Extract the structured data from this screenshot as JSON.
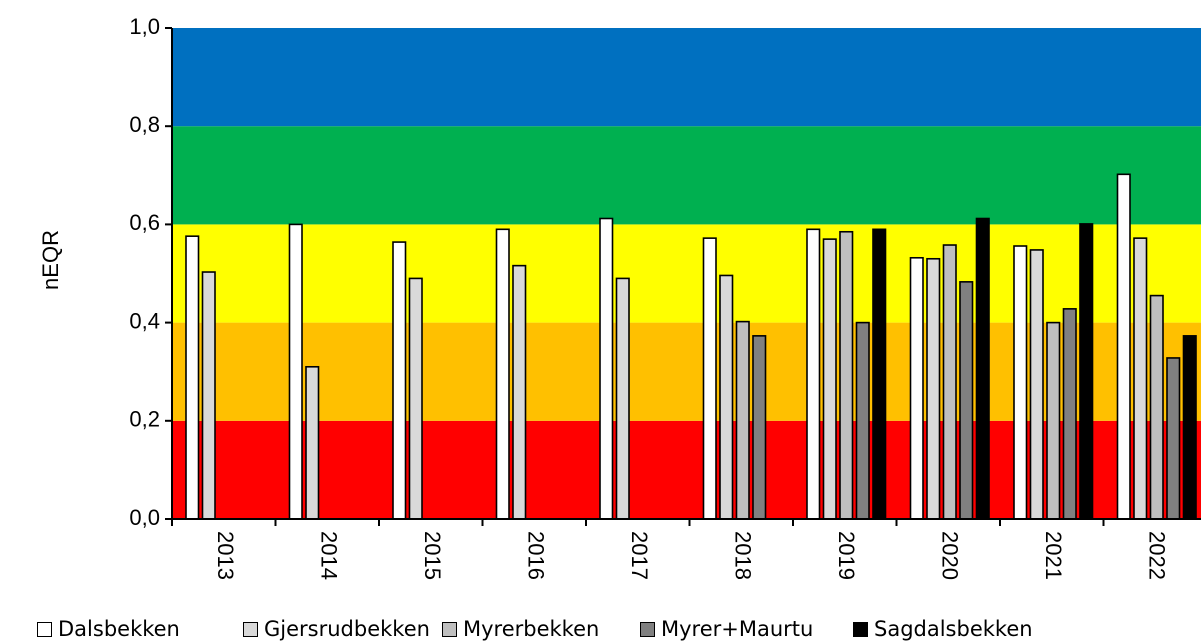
{
  "chart_data": {
    "type": "bar",
    "ylabel": "nEQR",
    "xlabel": "",
    "ylim": [
      0,
      1
    ],
    "yticks": [
      "0,0",
      "0,2",
      "0,4",
      "0,6",
      "0,8",
      "1,0"
    ],
    "categories": [
      "2013",
      "2014",
      "2015",
      "2016",
      "2017",
      "2018",
      "2019",
      "2020",
      "2021",
      "2022"
    ],
    "background_bands": [
      {
        "from": 0.0,
        "to": 0.2,
        "color": "#ff0000"
      },
      {
        "from": 0.2,
        "to": 0.4,
        "color": "#ffc000"
      },
      {
        "from": 0.4,
        "to": 0.6,
        "color": "#ffff00"
      },
      {
        "from": 0.6,
        "to": 0.8,
        "color": "#00b050"
      },
      {
        "from": 0.8,
        "to": 1.0,
        "color": "#0070c0"
      }
    ],
    "legend_position": "bottom",
    "series": [
      {
        "name": "Dalsbekken",
        "color": "#ffffff",
        "values": [
          0.576,
          0.6,
          0.564,
          0.59,
          0.612,
          0.572,
          0.59,
          0.532,
          0.556,
          0.702
        ]
      },
      {
        "name": "Gjersrudbekken",
        "color": "#d9d9d9",
        "values": [
          0.503,
          0.31,
          0.49,
          0.516,
          0.49,
          0.496,
          0.57,
          0.53,
          0.548,
          0.572
        ]
      },
      {
        "name": "Myrerbekken",
        "color": "#bfbfbf",
        "values": [
          null,
          null,
          null,
          null,
          null,
          0.402,
          0.585,
          0.558,
          0.4,
          0.455
        ]
      },
      {
        "name": "Myrer+Maurtu",
        "color": "#808080",
        "values": [
          null,
          null,
          null,
          null,
          null,
          0.373,
          0.4,
          0.483,
          0.428,
          0.328
        ]
      },
      {
        "name": "Sagdalsbekken",
        "color": "#000000",
        "values": [
          null,
          null,
          null,
          null,
          null,
          null,
          0.59,
          0.612,
          0.601,
          0.373
        ]
      }
    ]
  }
}
